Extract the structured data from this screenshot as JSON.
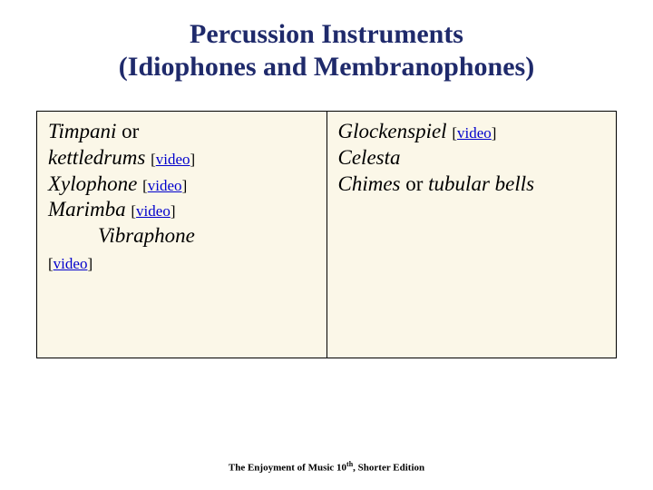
{
  "title": {
    "line1": "Percussion Instruments",
    "line2": "(Idiophones and Membranophones)"
  },
  "left": {
    "timpani_a": "Timpani",
    "or": " or ",
    "timpani_b": "kettledrums",
    "xylophone": "Xylophone",
    "marimba": "Marimba",
    "vibraphone": "Vibraphone"
  },
  "right": {
    "glock": "Glockenspiel",
    "celesta": "Celesta",
    "chimes_a": "Chimes",
    "chimes_mid": " or ",
    "chimes_b": "tubular bells"
  },
  "link": {
    "open": "[",
    "text": "video",
    "close": "]"
  },
  "footer": {
    "a": "The Enjoyment of Music 10",
    "b": "th",
    "c": ", Shorter Edition"
  },
  "colors": {
    "title": "#1f2a6b",
    "cell_bg": "#fbf7e8",
    "link": "#0000cc"
  }
}
